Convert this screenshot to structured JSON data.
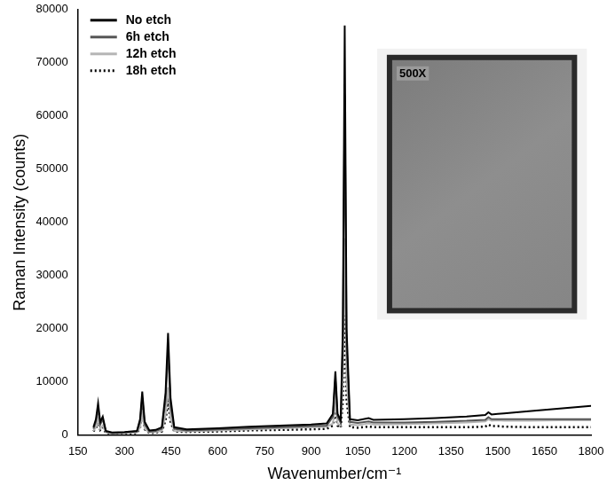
{
  "chart_data": {
    "type": "line",
    "x_label": "Wavenumber/cm⁻¹",
    "y_label": "Raman Intensity (counts)",
    "annotations": [
      "500X"
    ],
    "x": [
      200,
      208,
      215,
      222,
      230,
      240,
      260,
      300,
      340,
      350,
      357,
      365,
      380,
      400,
      420,
      432,
      440,
      448,
      460,
      500,
      600,
      700,
      800,
      900,
      950,
      970,
      978,
      985,
      995,
      1002,
      1008,
      1014,
      1025,
      1050,
      1085,
      1100,
      1200,
      1300,
      1400,
      1460,
      1470,
      1480,
      1500,
      1520,
      1600,
      1700,
      1800
    ],
    "series": [
      {
        "name": "No etch",
        "color": "#000000",
        "line_style": "solid",
        "values": [
          1500,
          3000,
          6000,
          2500,
          3500,
          800,
          500,
          600,
          800,
          3000,
          8200,
          2500,
          900,
          1000,
          1500,
          8000,
          19200,
          7000,
          1500,
          1100,
          1300,
          1600,
          1800,
          2000,
          2200,
          4000,
          12000,
          4000,
          2800,
          20000,
          77000,
          20000,
          3000,
          2800,
          3200,
          2900,
          3000,
          3200,
          3500,
          3800,
          4300,
          3900,
          4000,
          4100,
          4500,
          5000,
          5500
        ]
      },
      {
        "name": "6h etch",
        "color": "#555555",
        "line_style": "solid",
        "values": [
          1200,
          2500,
          5000,
          2000,
          3000,
          700,
          400,
          500,
          700,
          2500,
          7000,
          2000,
          700,
          800,
          1200,
          6500,
          16000,
          5500,
          1200,
          900,
          1100,
          1300,
          1500,
          1700,
          1800,
          3500,
          10500,
          3500,
          2300,
          17000,
          64000,
          17000,
          2500,
          2300,
          2600,
          2400,
          2400,
          2500,
          2700,
          2900,
          3400,
          3000,
          3000,
          3000,
          3000,
          3000,
          3000
        ]
      },
      {
        "name": "12h etch",
        "color": "#b5b5b5",
        "line_style": "solid",
        "values": [
          800,
          1500,
          3000,
          1200,
          1800,
          500,
          300,
          400,
          500,
          1500,
          4000,
          1200,
          500,
          600,
          800,
          3800,
          9000,
          3200,
          800,
          700,
          900,
          1100,
          1300,
          1500,
          1600,
          2200,
          6000,
          2200,
          1800,
          10000,
          37000,
          10000,
          2000,
          1900,
          2200,
          2000,
          2100,
          2200,
          2400,
          2600,
          3000,
          2700,
          2800,
          2700,
          2700,
          2800,
          2800
        ]
      },
      {
        "name": "18h etch",
        "color": "#000000",
        "line_style": "dotted",
        "values": [
          700,
          1300,
          2500,
          1000,
          1500,
          400,
          300,
          300,
          400,
          1400,
          5000,
          1100,
          400,
          500,
          700,
          2800,
          6500,
          2500,
          700,
          600,
          700,
          900,
          1000,
          1100,
          1200,
          1800,
          4500,
          1800,
          1400,
          6500,
          22500,
          6500,
          1500,
          1400,
          1600,
          1500,
          1500,
          1500,
          1500,
          1600,
          2000,
          1700,
          1700,
          1600,
          1500,
          1500,
          1500
        ]
      }
    ],
    "xlim": [
      150,
      1800
    ],
    "xticks": [
      150,
      300,
      450,
      600,
      750,
      900,
      1050,
      1200,
      1350,
      1500,
      1650,
      1800
    ],
    "ylim": [
      0,
      80000
    ],
    "yticks": [
      0,
      10000,
      20000,
      30000,
      40000,
      50000,
      60000,
      70000,
      80000
    ],
    "grid": false,
    "legend": "upper left"
  }
}
